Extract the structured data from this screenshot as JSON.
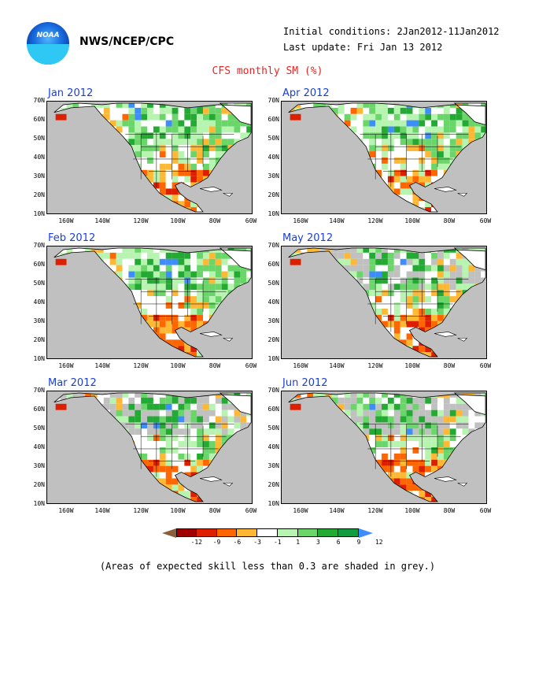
{
  "header": {
    "org": "NWS/NCEP/CPC",
    "initial_conditions": "Initial conditions: 2Jan2012-11Jan2012",
    "last_update": "Last update: Fri Jan 13 2012",
    "title": "CFS monthly SM (%)",
    "logo_text": "NOAA"
  },
  "maps": [
    {
      "title": "Jan 2012"
    },
    {
      "title": "Apr 2012"
    },
    {
      "title": "Feb 2012"
    },
    {
      "title": "May 2012"
    },
    {
      "title": "Mar 2012"
    },
    {
      "title": "Jun 2012"
    }
  ],
  "axes": {
    "lat_labels": [
      "70N",
      "60N",
      "50N",
      "40N",
      "30N",
      "20N",
      "10N"
    ],
    "lon_labels": [
      "160W",
      "140W",
      "120W",
      "100W",
      "80W",
      "60W"
    ]
  },
  "colorbar": {
    "labels": [
      "-12",
      "-9",
      "-6",
      "-3",
      "-1",
      "1",
      "3",
      "6",
      "9",
      "12"
    ],
    "colors": [
      "#8b5e3c",
      "#a00000",
      "#dd1f00",
      "#ff6600",
      "#ffb833",
      "#ffffff",
      "#b6f4b0",
      "#6ad66a",
      "#22aa33",
      "#129c42",
      "#3d8dff"
    ]
  },
  "footnote": "(Areas of expected skill less than 0.3 are shaded in grey.)"
}
